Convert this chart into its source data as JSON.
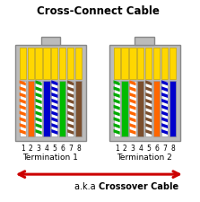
{
  "title": "Cross-Connect Cable",
  "subtitle_plain": "a.k.a ",
  "subtitle_bold": "Crossover Cable",
  "term1_label": "Termination 1",
  "term2_label": "Termination 2",
  "background": "#ffffff",
  "connector_bg": "#bbbbbb",
  "top_color": "#ffd700",
  "wire_colors_t1": [
    {
      "stripe": "#ff6600",
      "base": "#ffffff"
    },
    {
      "stripe": null,
      "base": "#ff6600"
    },
    {
      "stripe": "#00aa00",
      "base": "#ffffff"
    },
    {
      "stripe": null,
      "base": "#0000cc"
    },
    {
      "stripe": "#0000cc",
      "base": "#ffffff"
    },
    {
      "stripe": null,
      "base": "#00bb00"
    },
    {
      "stripe": "#7b4f2e",
      "base": "#ffffff"
    },
    {
      "stripe": null,
      "base": "#7b4f2e"
    }
  ],
  "wire_colors_t2": [
    {
      "stripe": "#00aa00",
      "base": "#ffffff"
    },
    {
      "stripe": null,
      "base": "#00bb00"
    },
    {
      "stripe": "#ff6600",
      "base": "#ffffff"
    },
    {
      "stripe": null,
      "base": "#7b4f2e"
    },
    {
      "stripe": "#7b4f2e",
      "base": "#ffffff"
    },
    {
      "stripe": null,
      "base": "#ff6600"
    },
    {
      "stripe": "#0000cc",
      "base": "#ffffff"
    },
    {
      "stripe": null,
      "base": "#0000cc"
    }
  ],
  "pin_numbers": [
    "1",
    "2",
    "3",
    "4",
    "5",
    "6",
    "7",
    "8"
  ],
  "arrow_color": "#cc0000",
  "fig_width": 2.23,
  "fig_height": 2.26
}
